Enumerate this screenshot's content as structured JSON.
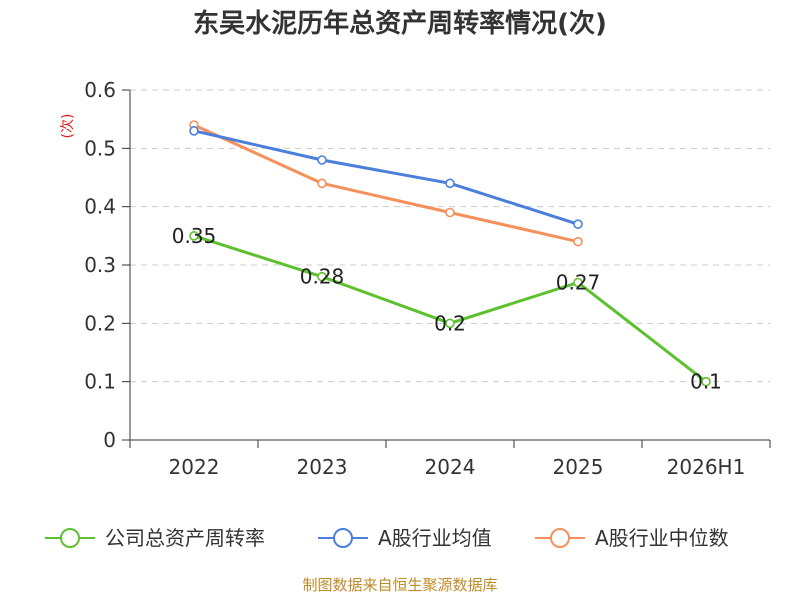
{
  "chart_data": {
    "type": "line",
    "title": "东吴水泥历年总资产周转率情况(次)",
    "ylabel": "(次)",
    "categories": [
      "2022",
      "2023",
      "2024",
      "2025",
      "2026H1"
    ],
    "y_ticks": [
      "0",
      "0.1",
      "0.2",
      "0.3",
      "0.4",
      "0.5",
      "0.6"
    ],
    "ylim": [
      0,
      0.6
    ],
    "grid": true,
    "legend_position": "bottom",
    "series": [
      {
        "name": "公司总资产周转率",
        "color": "#5cc12d",
        "values": [
          0.35,
          0.28,
          0.2,
          0.27,
          0.1
        ],
        "labels": [
          "0.35",
          "0.28",
          "0.2",
          "0.27",
          "0.1"
        ]
      },
      {
        "name": "A股行业均值",
        "color": "#4a7fdb",
        "values": [
          0.53,
          0.48,
          0.44,
          0.37,
          null
        ]
      },
      {
        "name": "A股行业中位数",
        "color": "#f5905a",
        "values": [
          0.54,
          0.44,
          0.39,
          0.34,
          null
        ]
      }
    ],
    "source": "制图数据来自恒生聚源数据库"
  }
}
